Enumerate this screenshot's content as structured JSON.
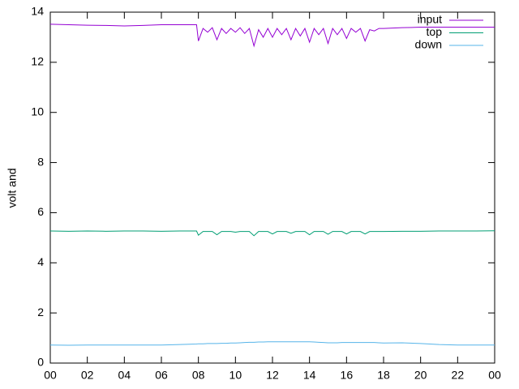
{
  "chart_data": {
    "type": "line",
    "ylabel": "volt and",
    "x": [
      0,
      1,
      2,
      3,
      4,
      5,
      6,
      7,
      7.9,
      8,
      8.25,
      8.5,
      8.75,
      9,
      9.25,
      9.5,
      9.75,
      10,
      10.25,
      10.5,
      10.75,
      11,
      11.25,
      11.5,
      11.75,
      12,
      12.25,
      12.5,
      12.75,
      13,
      13.25,
      13.5,
      13.75,
      14,
      14.25,
      14.5,
      14.75,
      15,
      15.25,
      15.5,
      15.75,
      16,
      16.25,
      16.5,
      16.75,
      17,
      17.25,
      17.5,
      17.75,
      18,
      19,
      20,
      21,
      22,
      23,
      24
    ],
    "series": [
      {
        "name": "input",
        "color": "#9400d3",
        "values": [
          13.52,
          13.5,
          13.48,
          13.47,
          13.45,
          13.47,
          13.5,
          13.5,
          13.5,
          12.85,
          13.35,
          13.2,
          13.38,
          12.9,
          13.35,
          13.15,
          13.35,
          13.2,
          13.38,
          13.15,
          13.35,
          12.65,
          13.3,
          13.0,
          13.35,
          13.0,
          13.35,
          13.1,
          13.35,
          12.9,
          13.35,
          13.05,
          13.35,
          12.8,
          13.35,
          13.1,
          13.35,
          12.75,
          13.35,
          13.1,
          13.35,
          12.95,
          13.35,
          13.2,
          13.35,
          12.85,
          13.3,
          13.25,
          13.35,
          13.35,
          13.38,
          13.4,
          13.4,
          13.4,
          13.4,
          13.4
        ]
      },
      {
        "name": "top",
        "color": "#009e73",
        "values": [
          5.27,
          5.26,
          5.27,
          5.26,
          5.27,
          5.27,
          5.26,
          5.27,
          5.27,
          5.1,
          5.25,
          5.25,
          5.25,
          5.12,
          5.25,
          5.25,
          5.25,
          5.22,
          5.25,
          5.25,
          5.25,
          5.08,
          5.25,
          5.25,
          5.25,
          5.15,
          5.25,
          5.25,
          5.25,
          5.18,
          5.25,
          5.25,
          5.25,
          5.12,
          5.25,
          5.25,
          5.25,
          5.14,
          5.25,
          5.25,
          5.25,
          5.15,
          5.25,
          5.25,
          5.25,
          5.15,
          5.25,
          5.25,
          5.25,
          5.25,
          5.26,
          5.26,
          5.27,
          5.27,
          5.27,
          5.28
        ]
      },
      {
        "name": "down",
        "color": "#56b4e9",
        "values": [
          0.72,
          0.71,
          0.72,
          0.72,
          0.72,
          0.72,
          0.72,
          0.74,
          0.76,
          0.77,
          0.77,
          0.78,
          0.78,
          0.78,
          0.79,
          0.79,
          0.8,
          0.8,
          0.81,
          0.82,
          0.83,
          0.83,
          0.84,
          0.84,
          0.85,
          0.85,
          0.85,
          0.85,
          0.85,
          0.85,
          0.85,
          0.85,
          0.85,
          0.85,
          0.84,
          0.83,
          0.82,
          0.81,
          0.81,
          0.81,
          0.82,
          0.82,
          0.82,
          0.82,
          0.82,
          0.82,
          0.82,
          0.82,
          0.81,
          0.8,
          0.81,
          0.78,
          0.74,
          0.72,
          0.72,
          0.72
        ]
      }
    ],
    "xlim": [
      0,
      24
    ],
    "xticks": [
      {
        "value": 0,
        "label": "00"
      },
      {
        "value": 2,
        "label": "02"
      },
      {
        "value": 4,
        "label": "04"
      },
      {
        "value": 6,
        "label": "06"
      },
      {
        "value": 8,
        "label": "08"
      },
      10,
      12,
      14,
      16,
      18,
      20,
      22,
      {
        "value": 24,
        "label": "00"
      }
    ],
    "ylim": [
      0,
      14
    ],
    "yticks": [
      0,
      2,
      4,
      6,
      8,
      10,
      12,
      14
    ],
    "legend": "top-right",
    "grid": false
  }
}
